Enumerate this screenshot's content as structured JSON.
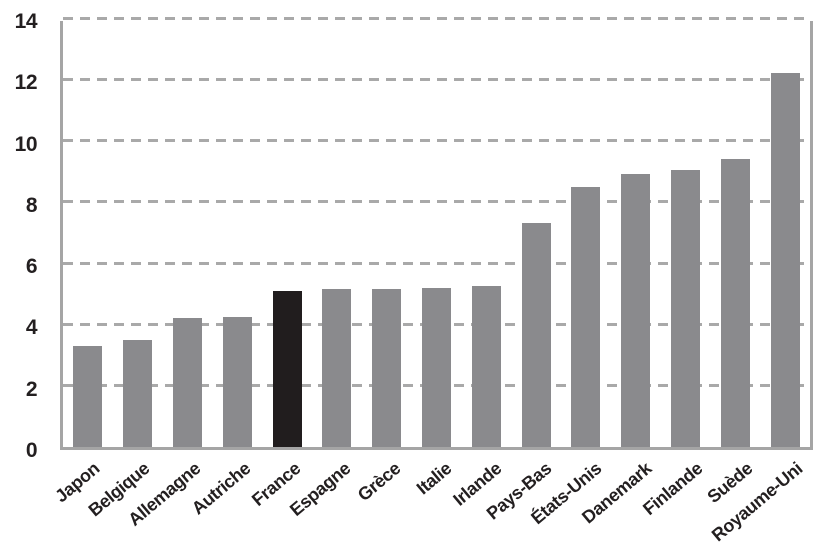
{
  "chart_data": {
    "type": "bar",
    "categories": [
      "Japon",
      "Belgique",
      "Allemagne",
      "Autriche",
      "France",
      "Espagne",
      "Grèce",
      "Italie",
      "Irlande",
      "Pays-Bas",
      "États-Unis",
      "Danemark",
      "Finlande",
      "Suède",
      "Royaume-Uni"
    ],
    "values": [
      3.3,
      3.5,
      4.2,
      4.25,
      5.1,
      5.15,
      5.15,
      5.2,
      5.25,
      7.3,
      8.5,
      8.9,
      9.05,
      9.4,
      12.2
    ],
    "highlight_category": "France",
    "title": "",
    "xlabel": "",
    "ylabel": "",
    "ylim": [
      0,
      14
    ],
    "yticks": [
      0,
      2,
      4,
      6,
      8,
      10,
      12,
      14
    ],
    "grid": "horizontal-dashed",
    "legend": "none",
    "colors": {
      "bar": "#8a8a8d",
      "highlight_bar": "#211d1e",
      "gridline": "#a9a9a9",
      "axis": "#a5a5a5",
      "text": "#231f20",
      "background": "#ffffff"
    }
  }
}
